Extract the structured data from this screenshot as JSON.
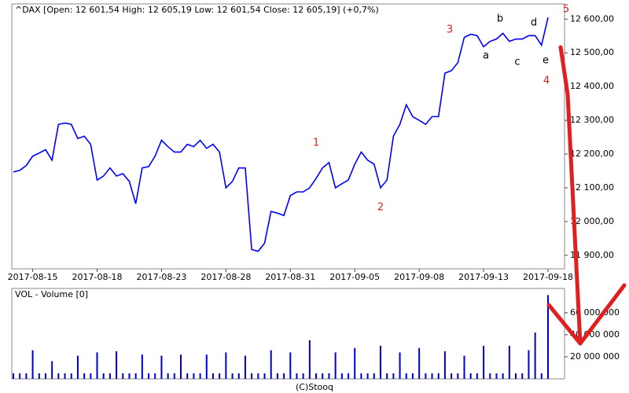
{
  "chart_data": [
    {
      "type": "line",
      "title": "^DAX [Open: 12 601,54  High: 12 605,19  Low: 12 601,54  Close: 12 605,19] (+0,7%)",
      "categories": [
        null,
        null,
        null,
        "2017-08-15",
        null,
        null,
        null,
        null,
        null,
        null,
        null,
        null,
        null,
        "2017-08-18",
        null,
        null,
        null,
        null,
        null,
        null,
        null,
        null,
        null,
        "2017-08-23",
        null,
        null,
        null,
        null,
        null,
        null,
        null,
        null,
        null,
        "2017-08-28",
        null,
        null,
        null,
        null,
        null,
        null,
        null,
        null,
        null,
        "2017-08-31",
        null,
        null,
        null,
        null,
        null,
        null,
        null,
        null,
        null,
        "2017-09-05",
        null,
        null,
        null,
        null,
        null,
        null,
        null,
        null,
        null,
        "2017-09-08",
        null,
        null,
        null,
        null,
        null,
        null,
        null,
        null,
        null,
        "2017-09-13",
        null,
        null,
        null,
        null,
        null,
        null,
        null,
        null,
        null,
        "2017-09-18"
      ],
      "series": [
        {
          "name": "^DAX",
          "color": "#0000ff",
          "values": [
            12147,
            12152,
            12166,
            12194,
            12203,
            12213,
            12182,
            12288,
            12292,
            12288,
            12246,
            12253,
            12229,
            12123,
            12135,
            12159,
            12135,
            12142,
            12119,
            12053,
            12159,
            12163,
            12194,
            12241,
            12222,
            12206,
            12206,
            12229,
            12222,
            12241,
            12217,
            12229,
            12206,
            12100,
            12119,
            12159,
            12159,
            11917,
            11912,
            11936,
            12030,
            12025,
            12018,
            12077,
            12088,
            12088,
            12100,
            12128,
            12159,
            12175,
            12100,
            12112,
            12123,
            12170,
            12206,
            12182,
            12170,
            12100,
            12123,
            12253,
            12288,
            12346,
            12311,
            12300,
            12288,
            12311,
            12311,
            12440,
            12447,
            12471,
            12546,
            12555,
            12551,
            12518,
            12534,
            12541,
            12558,
            12534,
            12541,
            12541,
            12551,
            12551,
            12523,
            12605
          ]
        }
      ],
      "ylim": [
        11860,
        12645
      ],
      "yticks": [
        {
          "value": 11900,
          "label": "11 900,00"
        },
        {
          "value": 12000,
          "label": "12 000,00"
        },
        {
          "value": 12100,
          "label": "12 100,00"
        },
        {
          "value": 12200,
          "label": "12 200,00"
        },
        {
          "value": 12300,
          "label": "12 300,00"
        },
        {
          "value": 12400,
          "label": "12 400,00"
        },
        {
          "value": 12500,
          "label": "12 500,00"
        },
        {
          "value": 12600,
          "label": "12 600,00"
        }
      ],
      "annotations": [
        {
          "text": "1",
          "color": "#d62020"
        },
        {
          "text": "2",
          "color": "#d62020"
        },
        {
          "text": "3",
          "color": "#d62020"
        },
        {
          "text": "4",
          "color": "#d62020"
        },
        {
          "text": "5",
          "color": "#d62020"
        },
        {
          "text": "a",
          "color": "#000000"
        },
        {
          "text": "b",
          "color": "#000000"
        },
        {
          "text": "c",
          "color": "#000000"
        },
        {
          "text": "d",
          "color": "#000000"
        },
        {
          "text": "e",
          "color": "#000000"
        }
      ]
    },
    {
      "type": "bar",
      "title": "VOL - Volume [0]",
      "color": "#0000cc",
      "values": [
        5000000,
        5000000,
        5000000,
        26000000,
        5000000,
        5000000,
        16000000,
        5000000,
        5000000,
        5000000,
        21000000,
        5000000,
        5000000,
        24000000,
        5000000,
        5000000,
        25000000,
        5000000,
        5000000,
        5000000,
        22000000,
        5000000,
        5000000,
        21000000,
        5000000,
        5000000,
        22000000,
        5000000,
        5000000,
        5000000,
        22000000,
        5000000,
        5000000,
        24000000,
        5000000,
        5000000,
        21000000,
        5000000,
        5000000,
        5000000,
        26000000,
        5000000,
        5000000,
        24000000,
        5000000,
        5000000,
        35000000,
        5000000,
        5000000,
        5000000,
        24000000,
        5000000,
        5000000,
        28000000,
        5000000,
        5000000,
        5000000,
        30000000,
        5000000,
        5000000,
        24000000,
        5000000,
        5000000,
        28000000,
        5000000,
        5000000,
        5000000,
        25000000,
        5000000,
        5000000,
        21000000,
        5000000,
        5000000,
        30000000,
        5000000,
        5000000,
        5000000,
        30000000,
        5000000,
        5000000,
        26000000,
        42000000,
        5000000,
        76000000
      ],
      "ylim": [
        0,
        82000000
      ],
      "yticks": [
        {
          "value": 20000000,
          "label": "20 000 000"
        },
        {
          "value": 40000000,
          "label": "40 000 000"
        },
        {
          "value": 60000000,
          "label": "60 000 000"
        }
      ],
      "footer": "(C)Stooq"
    }
  ]
}
